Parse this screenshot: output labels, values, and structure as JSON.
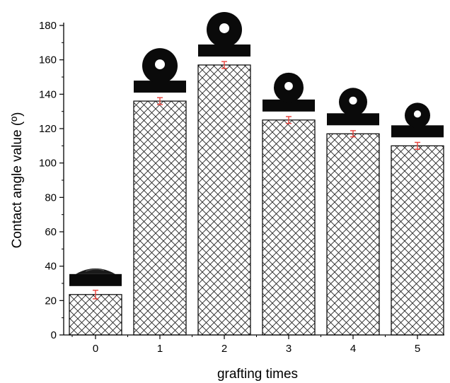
{
  "chart_data": {
    "type": "bar",
    "xlabel": "grafting times",
    "ylabel": "Contact angle value (º)",
    "categories": [
      "0",
      "1",
      "2",
      "3",
      "4",
      "5"
    ],
    "values": [
      23.5,
      136,
      157,
      125,
      117,
      110
    ],
    "errors": [
      2.5,
      2,
      2,
      2,
      1.8,
      2
    ],
    "ylim": [
      0,
      180
    ],
    "yticks": [
      "0",
      "20",
      "40",
      "60",
      "80",
      "100",
      "120",
      "140",
      "160",
      "180"
    ],
    "ytick_values": [
      0,
      20,
      40,
      60,
      80,
      100,
      120,
      140,
      160,
      180
    ],
    "bar_pattern": "crosshatch",
    "error_bar_color": "#e8413a",
    "droplet_color": "#0a0a0a",
    "grid": false,
    "insets": "water droplet photo above each bar"
  }
}
